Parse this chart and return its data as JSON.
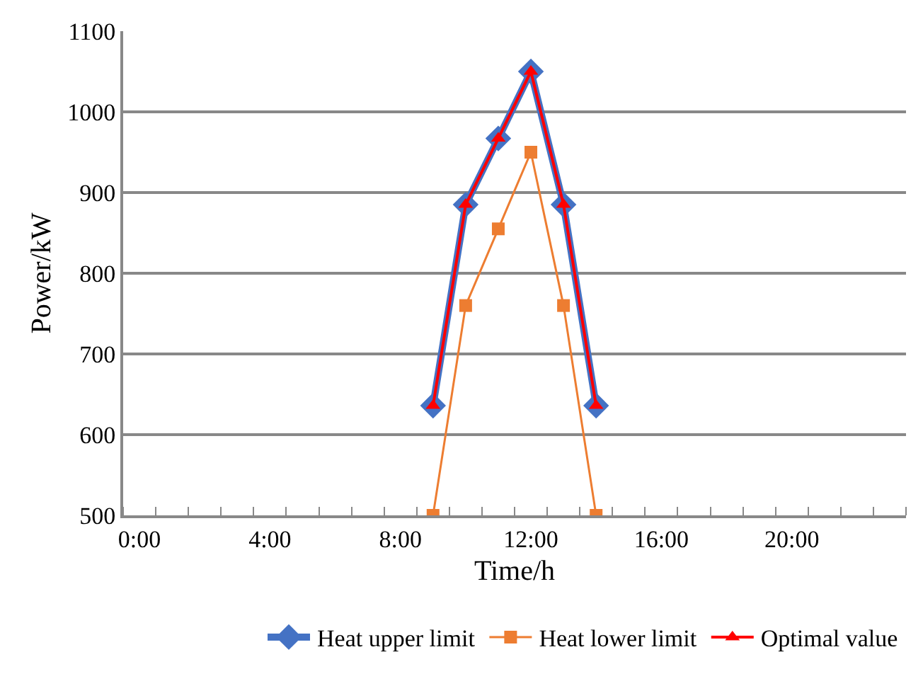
{
  "chart_data": {
    "type": "line",
    "xlabel": "Time/h",
    "ylabel": "Power/kW",
    "categories": [
      "0:00",
      null,
      null,
      null,
      "4:00",
      null,
      null,
      null,
      "8:00",
      null,
      null,
      null,
      "12:00",
      null,
      null,
      null,
      "16:00",
      null,
      null,
      null,
      "20:00",
      null,
      null,
      null
    ],
    "series": [
      {
        "name": "Heat upper limit",
        "color": "#4472c4",
        "marker": "diamond",
        "values": [
          null,
          null,
          null,
          null,
          null,
          null,
          null,
          null,
          null,
          636,
          885,
          967,
          1050,
          885,
          636,
          null,
          null,
          null,
          null,
          null,
          null,
          null,
          null,
          null
        ]
      },
      {
        "name": "Heat lower limit",
        "color": "#ed7d31",
        "marker": "square",
        "values": [
          null,
          null,
          null,
          null,
          null,
          null,
          null,
          null,
          null,
          500,
          760,
          855,
          950,
          760,
          500,
          null,
          null,
          null,
          null,
          null,
          null,
          null,
          null,
          null
        ]
      },
      {
        "name": "Optimal value",
        "color": "#ff0000",
        "marker": "triangle",
        "values": [
          null,
          null,
          null,
          null,
          null,
          null,
          null,
          null,
          null,
          636,
          885,
          967,
          1050,
          885,
          636,
          null,
          null,
          null,
          null,
          null,
          null,
          null,
          null,
          null
        ]
      }
    ],
    "ylim": [
      500,
      1100
    ],
    "yticks": [
      500,
      600,
      700,
      800,
      900,
      1000,
      1100
    ],
    "grid": "y",
    "legend": "bottom",
    "line_style": "solid"
  }
}
